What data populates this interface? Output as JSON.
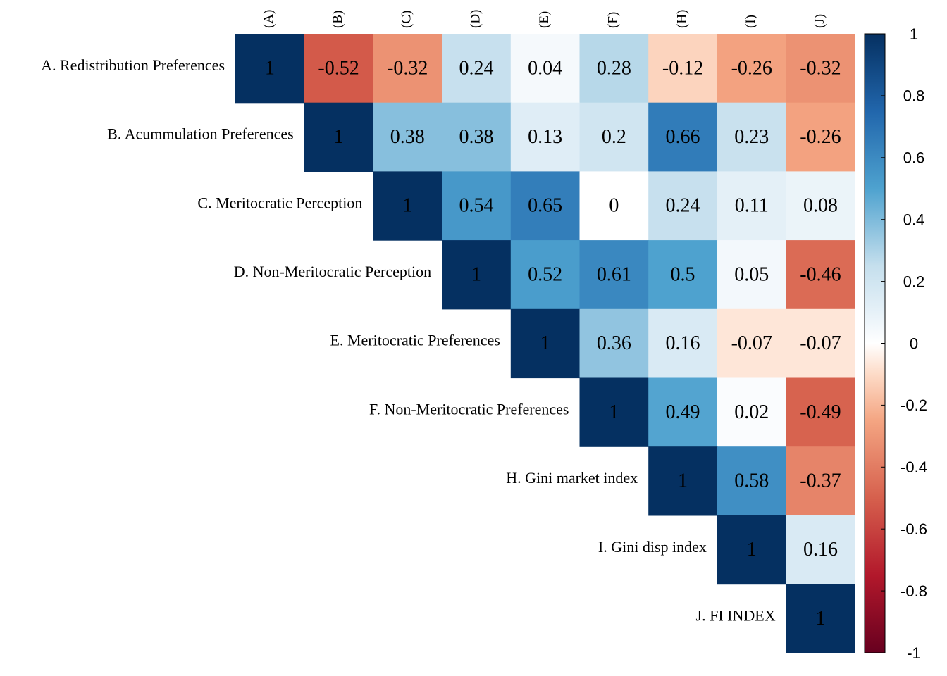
{
  "chart_data": {
    "type": "heatmap",
    "layout": "upper-triangular correlation matrix",
    "row_labels": [
      "A. Redistribution Preferences",
      "B. Acummulation Preferences",
      "C. Meritocratic Perception",
      "D. Non-Meritocratic Perception",
      "E. Meritocratic Preferences",
      "F. Non-Meritocratic Preferences",
      "H. Gini market index",
      "I. Gini disp index",
      "J. FI INDEX"
    ],
    "col_labels": [
      "(A)",
      "(B)",
      "(C)",
      "(D)",
      "(E)",
      "(F)",
      "(H)",
      "(I)",
      "(J)"
    ],
    "values": [
      [
        1,
        -0.52,
        -0.32,
        0.24,
        0.04,
        0.28,
        -0.12,
        -0.26,
        -0.32
      ],
      [
        null,
        1,
        0.38,
        0.38,
        0.13,
        0.2,
        0.66,
        0.23,
        -0.26
      ],
      [
        null,
        null,
        1,
        0.54,
        0.65,
        0,
        0.24,
        0.11,
        0.08
      ],
      [
        null,
        null,
        null,
        1,
        0.52,
        0.61,
        0.5,
        0.05,
        -0.46
      ],
      [
        null,
        null,
        null,
        null,
        1,
        0.36,
        0.16,
        -0.07,
        -0.07
      ],
      [
        null,
        null,
        null,
        null,
        null,
        1,
        0.49,
        0.02,
        -0.49
      ],
      [
        null,
        null,
        null,
        null,
        null,
        null,
        1,
        0.58,
        -0.37
      ],
      [
        null,
        null,
        null,
        null,
        null,
        null,
        null,
        1,
        0.16
      ],
      [
        null,
        null,
        null,
        null,
        null,
        null,
        null,
        null,
        1
      ]
    ],
    "color_scale": {
      "range": [
        -1,
        1
      ],
      "ticks": [
        "1",
        "0.8",
        "0.6",
        "0.4",
        "0.2",
        "0",
        "-0.2",
        "-0.4",
        "-0.6",
        "-0.8",
        "-1"
      ],
      "stops": [
        {
          "value": -1,
          "color": "#67001f"
        },
        {
          "value": -0.75,
          "color": "#b2182b"
        },
        {
          "value": -0.5,
          "color": "#d6604d"
        },
        {
          "value": -0.25,
          "color": "#f4a582"
        },
        {
          "value": -0.1,
          "color": "#fddbc7"
        },
        {
          "value": 0,
          "color": "#ffffff"
        },
        {
          "value": 0.1,
          "color": "#e6f1f8"
        },
        {
          "value": 0.25,
          "color": "#c5dfed"
        },
        {
          "value": 0.5,
          "color": "#4ea2cf"
        },
        {
          "value": 0.75,
          "color": "#2166ac"
        },
        {
          "value": 1,
          "color": "#053061"
        }
      ],
      "legend_position": "right"
    }
  }
}
